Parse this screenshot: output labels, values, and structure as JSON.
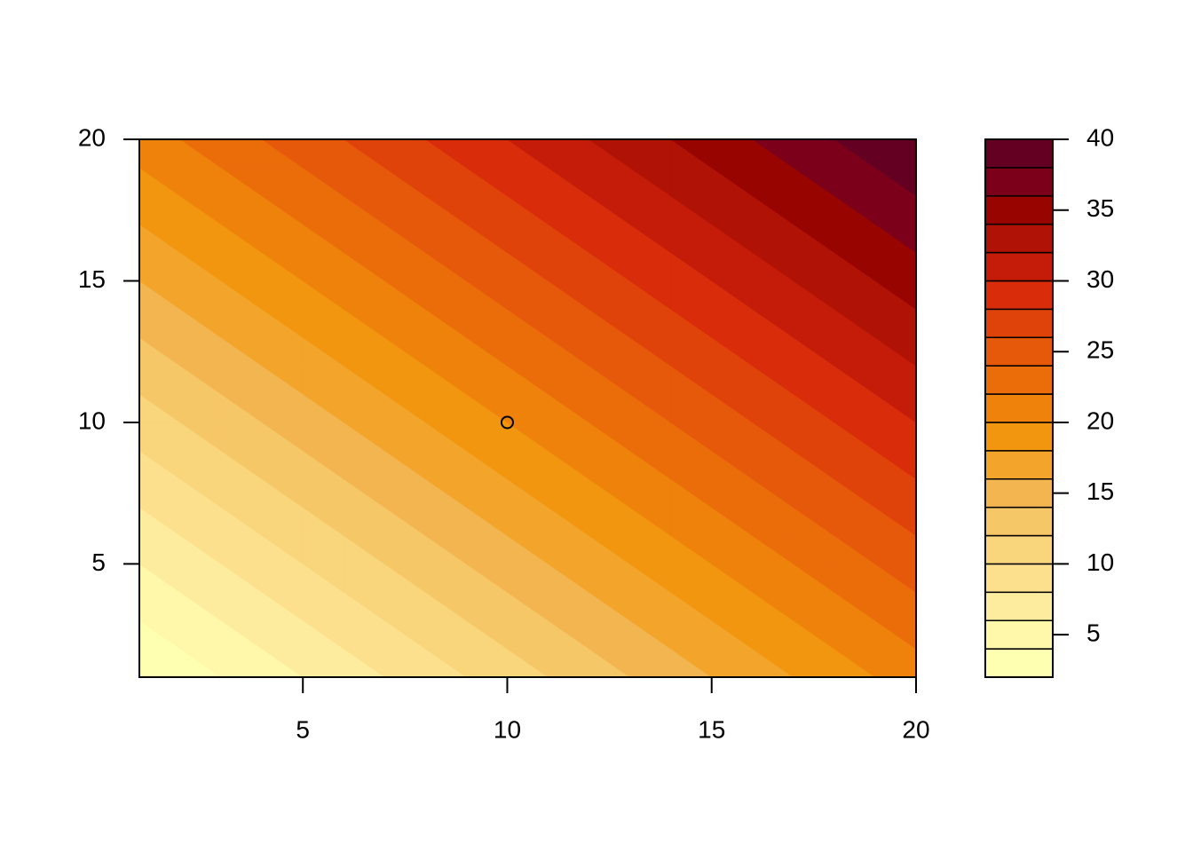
{
  "chart_data": {
    "type": "filled_contour",
    "x": [
      1,
      2,
      3,
      4,
      5,
      6,
      7,
      8,
      9,
      10,
      11,
      12,
      13,
      14,
      15,
      16,
      17,
      18,
      19,
      20
    ],
    "y": [
      1,
      2,
      3,
      4,
      5,
      6,
      7,
      8,
      9,
      10,
      11,
      12,
      13,
      14,
      15,
      16,
      17,
      18,
      19,
      20
    ],
    "z": [
      [
        2,
        3,
        4,
        5,
        6,
        7,
        8,
        9,
        10,
        11,
        12,
        13,
        14,
        15,
        16,
        17,
        18,
        19,
        20,
        21
      ],
      [
        3,
        4,
        5,
        6,
        7,
        8,
        9,
        10,
        11,
        12,
        13,
        14,
        15,
        16,
        17,
        18,
        19,
        20,
        21,
        22
      ],
      [
        4,
        5,
        6,
        7,
        8,
        9,
        10,
        11,
        12,
        13,
        14,
        15,
        16,
        17,
        18,
        19,
        20,
        21,
        22,
        23
      ],
      [
        5,
        6,
        7,
        8,
        9,
        10,
        11,
        12,
        13,
        14,
        15,
        16,
        17,
        18,
        19,
        20,
        21,
        22,
        23,
        24
      ],
      [
        6,
        7,
        8,
        9,
        10,
        11,
        12,
        13,
        14,
        15,
        16,
        17,
        18,
        19,
        20,
        21,
        22,
        23,
        24,
        25
      ],
      [
        7,
        8,
        9,
        10,
        11,
        12,
        13,
        14,
        15,
        16,
        17,
        18,
        19,
        20,
        21,
        22,
        23,
        24,
        25,
        26
      ],
      [
        8,
        9,
        10,
        11,
        12,
        13,
        14,
        15,
        16,
        17,
        18,
        19,
        20,
        21,
        22,
        23,
        24,
        25,
        26,
        27
      ],
      [
        9,
        10,
        11,
        12,
        13,
        14,
        15,
        16,
        17,
        18,
        19,
        20,
        21,
        22,
        23,
        24,
        25,
        26,
        27,
        28
      ],
      [
        10,
        11,
        12,
        13,
        14,
        15,
        16,
        17,
        18,
        19,
        20,
        21,
        22,
        23,
        24,
        25,
        26,
        27,
        28,
        29
      ],
      [
        11,
        12,
        13,
        14,
        15,
        16,
        17,
        18,
        19,
        20,
        21,
        22,
        23,
        24,
        25,
        26,
        27,
        28,
        29,
        30
      ],
      [
        12,
        13,
        14,
        15,
        16,
        17,
        18,
        19,
        20,
        21,
        22,
        23,
        24,
        25,
        26,
        27,
        28,
        29,
        30,
        31
      ],
      [
        13,
        14,
        15,
        16,
        17,
        18,
        19,
        20,
        21,
        22,
        23,
        24,
        25,
        26,
        27,
        28,
        29,
        30,
        31,
        32
      ],
      [
        14,
        15,
        16,
        17,
        18,
        19,
        20,
        21,
        22,
        23,
        24,
        25,
        26,
        27,
        28,
        29,
        30,
        31,
        32,
        33
      ],
      [
        15,
        16,
        17,
        18,
        19,
        20,
        21,
        22,
        23,
        24,
        25,
        26,
        27,
        28,
        29,
        30,
        31,
        32,
        33,
        34
      ],
      [
        16,
        17,
        18,
        19,
        20,
        21,
        22,
        23,
        24,
        25,
        26,
        27,
        28,
        29,
        30,
        31,
        32,
        33,
        34,
        35
      ],
      [
        17,
        18,
        19,
        20,
        21,
        22,
        23,
        24,
        25,
        26,
        27,
        28,
        29,
        30,
        31,
        32,
        33,
        34,
        35,
        36
      ],
      [
        18,
        19,
        20,
        21,
        22,
        23,
        24,
        25,
        26,
        27,
        28,
        29,
        30,
        31,
        32,
        33,
        34,
        35,
        36,
        37
      ],
      [
        19,
        20,
        21,
        22,
        23,
        24,
        25,
        26,
        27,
        28,
        29,
        30,
        31,
        32,
        33,
        34,
        35,
        36,
        37,
        38
      ],
      [
        20,
        21,
        22,
        23,
        24,
        25,
        26,
        27,
        28,
        29,
        30,
        31,
        32,
        33,
        34,
        35,
        36,
        37,
        38,
        39
      ],
      [
        21,
        22,
        23,
        24,
        25,
        26,
        27,
        28,
        29,
        30,
        31,
        32,
        33,
        34,
        35,
        36,
        37,
        38,
        39,
        40
      ]
    ],
    "levels": [
      2,
      4,
      6,
      8,
      10,
      12,
      14,
      16,
      18,
      20,
      22,
      24,
      26,
      28,
      30,
      32,
      34,
      36,
      38,
      40
    ],
    "colors": [
      "#FFFFB2",
      "#FFF7AA",
      "#FEEC9E",
      "#FDE08D",
      "#F9D57B",
      "#F6C766",
      "#F3B550",
      "#F2A52A",
      "#F1960E",
      "#EE820A",
      "#EA6D0A",
      "#E6580A",
      "#E0430A",
      "#D82C0A",
      "#C41C08",
      "#B01206",
      "#980500",
      "#7C001A",
      "#640021"
    ],
    "xlim": [
      1,
      20
    ],
    "ylim": [
      1,
      20
    ],
    "xticks": [
      5,
      10,
      15,
      20
    ],
    "yticks": [
      5,
      10,
      15,
      20
    ],
    "zlim": [
      2,
      40
    ],
    "zticks": [
      5,
      10,
      15,
      20,
      25,
      30,
      35,
      40
    ],
    "points": {
      "x": [
        10
      ],
      "y": [
        10
      ]
    }
  }
}
